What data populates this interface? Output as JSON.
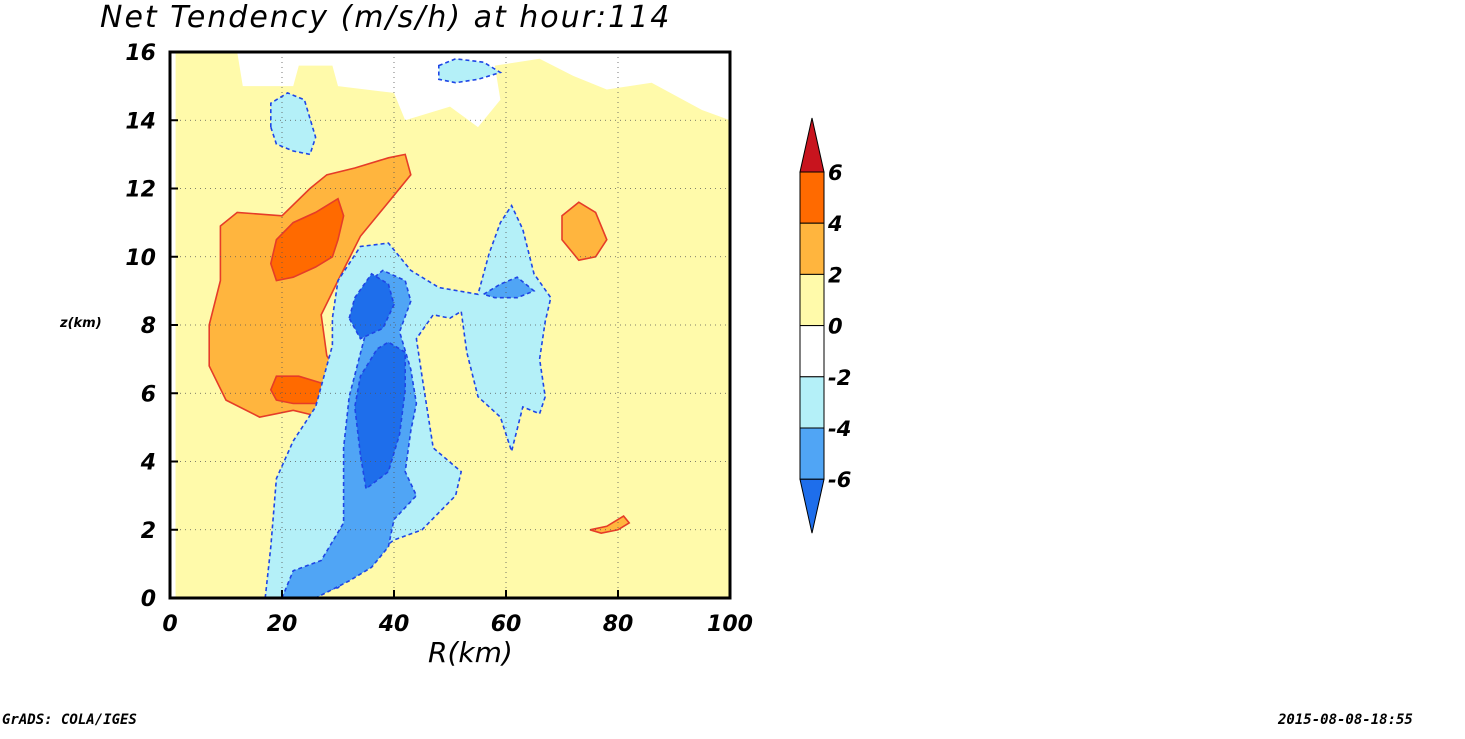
{
  "chart_data": {
    "type": "heatmap",
    "title": "Net Tendency (m/s/h) at hour:114",
    "xlabel": "R(km)",
    "ylabel": "z(km)",
    "xlim": [
      0,
      100
    ],
    "ylim": [
      0,
      16
    ],
    "x_ticks": [
      0,
      20,
      40,
      60,
      80,
      100
    ],
    "y_ticks": [
      0,
      2,
      4,
      6,
      8,
      10,
      12,
      14,
      16
    ],
    "grid": "dotted, at x=20,40,60,80 and y=2..14",
    "colorbar": {
      "placement": "right",
      "levels": [
        6,
        4,
        2,
        0,
        -2,
        -4,
        -6
      ],
      "bins": [
        {
          "range": ">6",
          "color": "#c8141e"
        },
        {
          "range": "4 to 6",
          "color": "#ff6a00"
        },
        {
          "range": "2 to 4",
          "color": "#ffb53e"
        },
        {
          "range": "0 to 2",
          "color": "#fffaaa"
        },
        {
          "range": "-2 to 0",
          "color": "#ffffff"
        },
        {
          "range": "-4 to -2",
          "color": "#b4f0f8"
        },
        {
          "range": "-6 to -4",
          "color": "#50a5f5"
        },
        {
          "range": "<-6",
          "color": "#1e6eeb"
        }
      ]
    },
    "regions": [
      {
        "level": "0 to 2",
        "points": [
          [
            1,
            0
          ],
          [
            1,
            16
          ],
          [
            12,
            16
          ],
          [
            13,
            15
          ],
          [
            22,
            15
          ],
          [
            23,
            15.6
          ],
          [
            29,
            15.6
          ],
          [
            30,
            15
          ],
          [
            40,
            14.8
          ],
          [
            42,
            14
          ],
          [
            50,
            14.4
          ],
          [
            55,
            13.8
          ],
          [
            59,
            14.6
          ],
          [
            58,
            15.6
          ],
          [
            66,
            15.8
          ],
          [
            72,
            15.3
          ],
          [
            78,
            14.9
          ],
          [
            86,
            15.1
          ],
          [
            95,
            14.3
          ],
          [
            100,
            14
          ],
          [
            100,
            0
          ],
          [
            48,
            0
          ],
          [
            55,
            2
          ],
          [
            62,
            4
          ],
          [
            70,
            6
          ],
          [
            77,
            6.6
          ],
          [
            84,
            7.4
          ],
          [
            92,
            7.1
          ],
          [
            97,
            8.5
          ],
          [
            100,
            9
          ],
          [
            100,
            0
          ]
        ]
      },
      {
        "level": "0 to 2",
        "points": [
          [
            1,
            0
          ],
          [
            1,
            12.8
          ],
          [
            5,
            13.5
          ],
          [
            12,
            13.2
          ],
          [
            20,
            11.8
          ],
          [
            28,
            12.4
          ],
          [
            36,
            13
          ],
          [
            42,
            12.6
          ],
          [
            46,
            10.3
          ],
          [
            42,
            9.5
          ],
          [
            32,
            8.5
          ],
          [
            33,
            6.6
          ],
          [
            30,
            4.6
          ],
          [
            22,
            4
          ],
          [
            10,
            4.5
          ],
          [
            2,
            4
          ],
          [
            1,
            0
          ]
        ]
      },
      {
        "level": "0 to 2",
        "points": [
          [
            66,
            9.9
          ],
          [
            66,
            11.6
          ],
          [
            70,
            12.3
          ],
          [
            78,
            12.1
          ],
          [
            84,
            11.4
          ],
          [
            85,
            10.1
          ],
          [
            80,
            9.5
          ],
          [
            72,
            9.3
          ],
          [
            66,
            9.9
          ]
        ]
      },
      {
        "level": "2 to 4",
        "points": [
          [
            7,
            6.8
          ],
          [
            7,
            8
          ],
          [
            9,
            9.3
          ],
          [
            9,
            10.9
          ],
          [
            12,
            11.3
          ],
          [
            20,
            11.2
          ],
          [
            25,
            12
          ],
          [
            28,
            12.4
          ],
          [
            33,
            12.6
          ],
          [
            39,
            12.9
          ],
          [
            42,
            13
          ],
          [
            43,
            12.4
          ],
          [
            39,
            11.6
          ],
          [
            34,
            10.6
          ],
          [
            30,
            9.3
          ],
          [
            27,
            8.3
          ],
          [
            28,
            7.1
          ],
          [
            31,
            6.3
          ],
          [
            31,
            5.4
          ],
          [
            27,
            5.3
          ],
          [
            22,
            5.5
          ],
          [
            16,
            5.3
          ],
          [
            10,
            5.8
          ],
          [
            7,
            6.8
          ]
        ]
      },
      {
        "level": "2 to 4",
        "points": [
          [
            70,
            11.2
          ],
          [
            73,
            11.6
          ],
          [
            76,
            11.3
          ],
          [
            78,
            10.5
          ],
          [
            76,
            10
          ],
          [
            73,
            9.9
          ],
          [
            70,
            10.5
          ],
          [
            70,
            11.2
          ]
        ]
      },
      {
        "level": "2 to 4",
        "points": [
          [
            75,
            2
          ],
          [
            78,
            2.1
          ],
          [
            81,
            2.4
          ],
          [
            82,
            2.2
          ],
          [
            80,
            2
          ],
          [
            77,
            1.9
          ],
          [
            75,
            2
          ]
        ]
      },
      {
        "level": "4 to 6",
        "points": [
          [
            18,
            9.8
          ],
          [
            19,
            10.5
          ],
          [
            22,
            11
          ],
          [
            26,
            11.3
          ],
          [
            30,
            11.7
          ],
          [
            31,
            11.2
          ],
          [
            30,
            10.5
          ],
          [
            29,
            10
          ],
          [
            26,
            9.7
          ],
          [
            22,
            9.4
          ],
          [
            19,
            9.3
          ],
          [
            18,
            9.8
          ]
        ]
      },
      {
        "level": "4 to 6",
        "points": [
          [
            18,
            6.1
          ],
          [
            19,
            6.5
          ],
          [
            23,
            6.5
          ],
          [
            27,
            6.3
          ],
          [
            28,
            6
          ],
          [
            26,
            5.7
          ],
          [
            22,
            5.7
          ],
          [
            19,
            5.8
          ],
          [
            18,
            6.1
          ]
        ]
      },
      {
        "level": "-4 to -2",
        "points": [
          [
            17,
            0
          ],
          [
            18,
            1.5
          ],
          [
            19,
            3.5
          ],
          [
            22,
            4.6
          ],
          [
            26,
            5.6
          ],
          [
            29,
            7.4
          ],
          [
            29,
            8.2
          ],
          [
            30,
            9.3
          ],
          [
            34,
            10.3
          ],
          [
            39,
            10.4
          ],
          [
            43,
            9.6
          ],
          [
            48,
            9.1
          ],
          [
            55,
            8.9
          ],
          [
            57,
            10.1
          ],
          [
            59,
            11
          ],
          [
            61,
            11.5
          ],
          [
            63,
            10.8
          ],
          [
            65,
            9.5
          ],
          [
            68,
            8.8
          ],
          [
            67,
            8.1
          ],
          [
            66,
            7
          ],
          [
            67,
            5.9
          ],
          [
            66,
            5.4
          ],
          [
            63,
            5.6
          ],
          [
            61,
            4.3
          ],
          [
            59,
            5.3
          ],
          [
            55,
            5.9
          ],
          [
            53,
            7.2
          ],
          [
            52,
            8.4
          ],
          [
            50,
            8.2
          ],
          [
            47,
            8.3
          ],
          [
            44,
            7.6
          ],
          [
            45,
            6.5
          ],
          [
            47,
            4.4
          ],
          [
            52,
            3.7
          ],
          [
            51,
            3
          ],
          [
            48,
            2.5
          ],
          [
            45,
            2
          ],
          [
            40,
            1.7
          ],
          [
            35,
            1.1
          ],
          [
            30,
            0.3
          ],
          [
            22,
            0
          ],
          [
            17,
            0
          ]
        ]
      },
      {
        "level": "-4 to -2",
        "points": [
          [
            18,
            13.8
          ],
          [
            18,
            14.5
          ],
          [
            21,
            14.8
          ],
          [
            24,
            14.6
          ],
          [
            26,
            13.5
          ],
          [
            25,
            13
          ],
          [
            22,
            13.1
          ],
          [
            19,
            13.3
          ],
          [
            18,
            13.8
          ]
        ]
      },
      {
        "level": "-4 to -2",
        "points": [
          [
            48,
            15.6
          ],
          [
            51,
            15.8
          ],
          [
            56,
            15.7
          ],
          [
            59,
            15.4
          ],
          [
            55,
            15.2
          ],
          [
            51,
            15.1
          ],
          [
            48,
            15.2
          ],
          [
            48,
            15.6
          ]
        ]
      },
      {
        "level": "-6 to -4",
        "points": [
          [
            20,
            0
          ],
          [
            22,
            0.8
          ],
          [
            27,
            1.1
          ],
          [
            31,
            2.2
          ],
          [
            31,
            4.4
          ],
          [
            32,
            5.9
          ],
          [
            35,
            7.8
          ],
          [
            34,
            8.6
          ],
          [
            35,
            9.2
          ],
          [
            38,
            9.6
          ],
          [
            42,
            9.3
          ],
          [
            43,
            8.7
          ],
          [
            41,
            7.8
          ],
          [
            43,
            6.7
          ],
          [
            44,
            5.7
          ],
          [
            43,
            4.9
          ],
          [
            42,
            3.7
          ],
          [
            44,
            3
          ],
          [
            40,
            2.3
          ],
          [
            39,
            1.5
          ],
          [
            36,
            0.9
          ],
          [
            32,
            0.5
          ],
          [
            26,
            0
          ],
          [
            20,
            0
          ]
        ]
      },
      {
        "level": "-6 to -4",
        "points": [
          [
            56,
            8.9
          ],
          [
            59,
            9.2
          ],
          [
            62,
            9.4
          ],
          [
            65,
            9
          ],
          [
            62,
            8.8
          ],
          [
            58,
            8.8
          ],
          [
            56,
            8.9
          ]
        ]
      },
      {
        "level": "<-6",
        "points": [
          [
            34,
            4.2
          ],
          [
            33,
            5.6
          ],
          [
            34,
            6.5
          ],
          [
            37,
            7.3
          ],
          [
            39,
            7.5
          ],
          [
            42,
            7.2
          ],
          [
            42,
            6.1
          ],
          [
            41,
            4.8
          ],
          [
            39,
            3.7
          ],
          [
            35,
            3.2
          ],
          [
            34,
            4.2
          ]
        ]
      },
      {
        "level": "<-6",
        "points": [
          [
            32,
            8.2
          ],
          [
            33,
            8.8
          ],
          [
            36,
            9.5
          ],
          [
            39,
            9.2
          ],
          [
            40,
            8.6
          ],
          [
            38,
            7.9
          ],
          [
            34,
            7.6
          ],
          [
            32,
            8.2
          ]
        ]
      }
    ]
  },
  "footer": {
    "left": "GrADS: COLA/IGES",
    "right": "2015-08-08-18:55"
  }
}
